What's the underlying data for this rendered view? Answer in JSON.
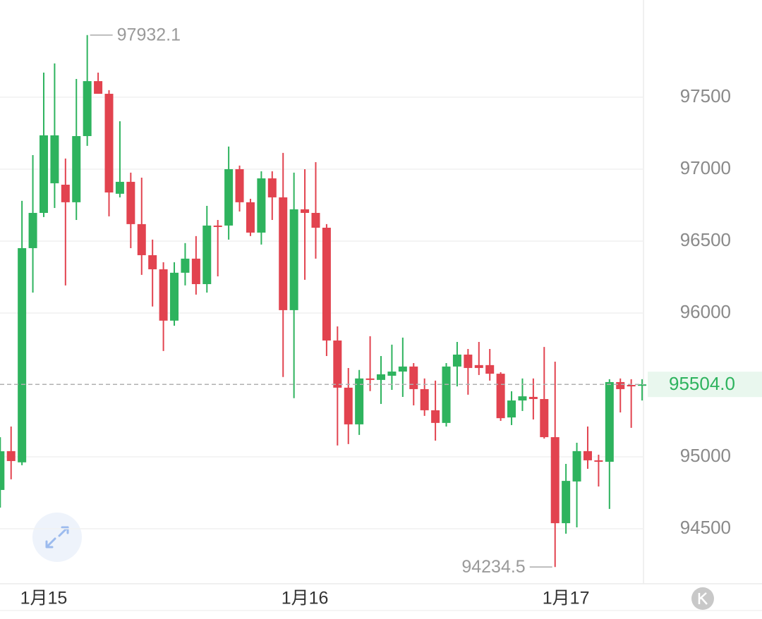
{
  "chart_data": {
    "type": "candlestick",
    "categories": [
      null,
      null,
      null,
      null,
      "1月15",
      null,
      null,
      null,
      null,
      null,
      null,
      null,
      null,
      null,
      null,
      null,
      null,
      null,
      null,
      null,
      null,
      null,
      null,
      null,
      null,
      null,
      null,
      null,
      "1月16",
      null,
      null,
      null,
      null,
      null,
      null,
      null,
      null,
      null,
      null,
      null,
      null,
      null,
      null,
      null,
      null,
      null,
      null,
      null,
      null,
      null,
      null,
      null,
      "1月17",
      null,
      null,
      null,
      null,
      null,
      null,
      null
    ],
    "open": [
      94770,
      95040,
      94962,
      96451,
      96696,
      96902,
      96892,
      96770,
      97230,
      97612,
      97524,
      96829,
      96912,
      96618,
      96402,
      96304,
      95947,
      96280,
      96378,
      96201,
      96608,
      96608,
      97000,
      96770,
      96559,
      96936,
      96804,
      96020,
      96721,
      96696,
      96593,
      95809,
      95481,
      95226,
      95545,
      95535,
      95564,
      95593,
      95628,
      95471,
      95324,
      95236,
      95628,
      95711,
      95638,
      95638,
      95578,
      95274,
      95392,
      95417,
      95402,
      95137,
      94539,
      94829,
      95040,
      94976,
      94966,
      95520,
      95500,
      95500
    ],
    "high": [
      95137,
      95211,
      96780,
      97098,
      97671,
      97735,
      97074,
      97627,
      97932.1,
      97671,
      97549,
      97333,
      96976,
      96941,
      96510,
      96353,
      96353,
      96486,
      96535,
      96745,
      96647,
      97157,
      97025,
      96794,
      96985,
      96985,
      97113,
      96976,
      97000,
      97049,
      96618,
      95907,
      95618,
      95604,
      95839,
      95701,
      95780,
      95829,
      95652,
      95545,
      95530,
      95652,
      95799,
      95750,
      95799,
      95750,
      95588,
      95456,
      95545,
      95545,
      95764,
      95662,
      94951,
      95098,
      95211,
      95015,
      95540,
      95545,
      95540,
      95540
    ],
    "low": [
      94647,
      94844,
      94942,
      96142,
      96667,
      96730,
      96192,
      96647,
      97162,
      97524,
      96672,
      96804,
      96451,
      96265,
      96045,
      95736,
      95912,
      96192,
      96128,
      96142,
      96255,
      96510,
      96706,
      96535,
      96476,
      96647,
      95555,
      95408,
      96231,
      96378,
      95701,
      95079,
      95089,
      95153,
      95457,
      95368,
      95466,
      95417,
      95358,
      95285,
      95113,
      95211,
      95490,
      95432,
      95569,
      95530,
      95250,
      95221,
      95319,
      95260,
      95127,
      94234.5,
      94466,
      94510,
      94917,
      94794,
      94638,
      95309,
      95202,
      95392
    ],
    "close": [
      95039,
      94971,
      96451,
      96696,
      97235,
      97235,
      96770,
      97230,
      97612,
      97524,
      96838,
      96912,
      96618,
      96402,
      96304,
      95947,
      96280,
      96378,
      96201,
      96608,
      96598,
      97000,
      96770,
      96559,
      96936,
      96804,
      96020,
      96721,
      96696,
      96593,
      95809,
      95481,
      95226,
      95545,
      95535,
      95574,
      95593,
      95628,
      95471,
      95324,
      95236,
      95628,
      95711,
      95618,
      95618,
      95578,
      95269,
      95392,
      95421,
      95402,
      95137,
      94539,
      94833,
      95040,
      94976,
      94966,
      95520,
      95471,
      95490,
      95504
    ],
    "up_color": "#2eb35e",
    "down_color": "#e2434f",
    "ylim": [
      94118,
      98176
    ],
    "yticks": [
      94500,
      95000,
      96000,
      96500,
      97000,
      97500
    ],
    "grid": true,
    "last_price": {
      "value": 95504,
      "label": "95504.0"
    }
  }
}
